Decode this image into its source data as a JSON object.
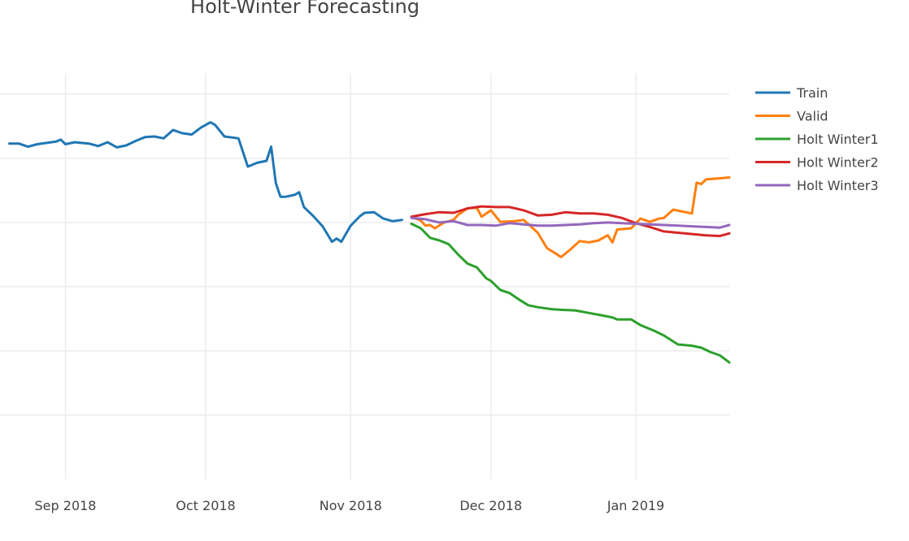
{
  "chart_data": {
    "type": "line",
    "title": "Holt-Winter Forecasting",
    "xlabel": "",
    "ylabel": "",
    "grid": true,
    "legend_position": "right",
    "x_ticks": [
      "Sep 2018",
      "Oct 2018",
      "Nov 2018",
      "Dec 2018",
      "Jan 2019"
    ],
    "series": [
      {
        "name": "Train",
        "color": "#1f77b4",
        "points": [
          [
            "2018-08-20",
            5.23
          ],
          [
            "2018-08-22",
            5.23
          ],
          [
            "2018-08-24",
            5.18
          ],
          [
            "2018-08-26",
            5.22
          ],
          [
            "2018-08-28",
            5.24
          ],
          [
            "2018-08-30",
            5.26
          ],
          [
            "2018-08-31",
            5.29
          ],
          [
            "2018-09-01",
            5.22
          ],
          [
            "2018-09-03",
            5.25
          ],
          [
            "2018-09-06",
            5.23
          ],
          [
            "2018-09-08",
            5.19
          ],
          [
            "2018-09-10",
            5.25
          ],
          [
            "2018-09-12",
            5.17
          ],
          [
            "2018-09-14",
            5.2
          ],
          [
            "2018-09-16",
            5.27
          ],
          [
            "2018-09-18",
            5.33
          ],
          [
            "2018-09-20",
            5.34
          ],
          [
            "2018-09-22",
            5.31
          ],
          [
            "2018-09-24",
            5.44
          ],
          [
            "2018-09-26",
            5.39
          ],
          [
            "2018-09-28",
            5.37
          ],
          [
            "2018-09-30",
            5.48
          ],
          [
            "2018-10-02",
            5.56
          ],
          [
            "2018-10-03",
            5.52
          ],
          [
            "2018-10-05",
            5.34
          ],
          [
            "2018-10-08",
            5.31
          ],
          [
            "2018-10-10",
            4.87
          ],
          [
            "2018-10-12",
            4.93
          ],
          [
            "2018-10-14",
            4.96
          ],
          [
            "2018-10-15",
            5.18
          ],
          [
            "2018-10-16",
            4.61
          ],
          [
            "2018-10-17",
            4.4
          ],
          [
            "2018-10-18",
            4.4
          ],
          [
            "2018-10-20",
            4.43
          ],
          [
            "2018-10-21",
            4.47
          ],
          [
            "2018-10-22",
            4.24
          ],
          [
            "2018-10-24",
            4.1
          ],
          [
            "2018-10-26",
            3.94
          ],
          [
            "2018-10-28",
            3.7
          ],
          [
            "2018-10-29",
            3.75
          ],
          [
            "2018-10-30",
            3.7
          ],
          [
            "2018-11-01",
            3.95
          ],
          [
            "2018-11-03",
            4.1
          ],
          [
            "2018-11-04",
            4.15
          ],
          [
            "2018-11-06",
            4.16
          ],
          [
            "2018-11-08",
            4.06
          ],
          [
            "2018-11-10",
            4.02
          ],
          [
            "2018-11-12",
            4.04
          ]
        ]
      },
      {
        "name": "Valid",
        "color": "#ff7f0e",
        "points": [
          [
            "2018-11-14",
            4.09
          ],
          [
            "2018-11-16",
            4.03
          ],
          [
            "2018-11-17",
            3.95
          ],
          [
            "2018-11-18",
            3.96
          ],
          [
            "2018-11-19",
            3.91
          ],
          [
            "2018-11-21",
            4.0
          ],
          [
            "2018-11-23",
            4.04
          ],
          [
            "2018-11-24",
            4.12
          ],
          [
            "2018-11-26",
            4.22
          ],
          [
            "2018-11-28",
            4.23
          ],
          [
            "2018-11-29",
            4.09
          ],
          [
            "2018-12-01",
            4.19
          ],
          [
            "2018-12-03",
            4.01
          ],
          [
            "2018-12-06",
            4.02
          ],
          [
            "2018-12-08",
            4.04
          ],
          [
            "2018-12-10",
            3.91
          ],
          [
            "2018-12-11",
            3.84
          ],
          [
            "2018-12-13",
            3.6
          ],
          [
            "2018-12-15",
            3.51
          ],
          [
            "2018-12-16",
            3.46
          ],
          [
            "2018-12-18",
            3.58
          ],
          [
            "2018-12-20",
            3.71
          ],
          [
            "2018-12-22",
            3.69
          ],
          [
            "2018-12-24",
            3.72
          ],
          [
            "2018-12-26",
            3.8
          ],
          [
            "2018-12-27",
            3.69
          ],
          [
            "2018-12-28",
            3.89
          ],
          [
            "2018-12-31",
            3.91
          ],
          [
            "2019-01-02",
            4.06
          ],
          [
            "2019-01-04",
            4.01
          ],
          [
            "2019-01-06",
            4.06
          ],
          [
            "2019-01-07",
            4.07
          ],
          [
            "2019-01-09",
            4.2
          ],
          [
            "2019-01-13",
            4.14
          ],
          [
            "2019-01-14",
            4.62
          ],
          [
            "2019-01-15",
            4.6
          ],
          [
            "2019-01-16",
            4.67
          ],
          [
            "2019-01-21",
            4.7
          ]
        ]
      },
      {
        "name": "Holt Winter1",
        "color": "#2ca02c",
        "points": [
          [
            "2018-11-14",
            3.98
          ],
          [
            "2018-11-16",
            3.91
          ],
          [
            "2018-11-18",
            3.76
          ],
          [
            "2018-11-20",
            3.72
          ],
          [
            "2018-11-22",
            3.66
          ],
          [
            "2018-11-24",
            3.5
          ],
          [
            "2018-11-26",
            3.36
          ],
          [
            "2018-11-28",
            3.3
          ],
          [
            "2018-11-30",
            3.13
          ],
          [
            "2018-12-01",
            3.09
          ],
          [
            "2018-12-03",
            2.95
          ],
          [
            "2018-12-05",
            2.9
          ],
          [
            "2018-12-07",
            2.8
          ],
          [
            "2018-12-09",
            2.71
          ],
          [
            "2018-12-11",
            2.68
          ],
          [
            "2018-12-14",
            2.65
          ],
          [
            "2018-12-16",
            2.64
          ],
          [
            "2018-12-19",
            2.63
          ],
          [
            "2018-12-22",
            2.59
          ],
          [
            "2018-12-25",
            2.55
          ],
          [
            "2018-12-27",
            2.52
          ],
          [
            "2018-12-28",
            2.49
          ],
          [
            "2018-12-31",
            2.49
          ],
          [
            "2019-01-02",
            2.4
          ],
          [
            "2019-01-05",
            2.31
          ],
          [
            "2019-01-07",
            2.24
          ],
          [
            "2019-01-10",
            2.1
          ],
          [
            "2019-01-13",
            2.08
          ],
          [
            "2019-01-15",
            2.05
          ],
          [
            "2019-01-17",
            1.98
          ],
          [
            "2019-01-19",
            1.93
          ],
          [
            "2019-01-21",
            1.82
          ]
        ]
      },
      {
        "name": "Holt Winter2",
        "color": "#d62728",
        "points": [
          [
            "2018-11-14",
            4.09
          ],
          [
            "2018-11-17",
            4.13
          ],
          [
            "2018-11-20",
            4.16
          ],
          [
            "2018-11-23",
            4.15
          ],
          [
            "2018-11-26",
            4.22
          ],
          [
            "2018-11-29",
            4.25
          ],
          [
            "2018-12-02",
            4.24
          ],
          [
            "2018-12-05",
            4.24
          ],
          [
            "2018-12-08",
            4.19
          ],
          [
            "2018-12-11",
            4.11
          ],
          [
            "2018-12-14",
            4.12
          ],
          [
            "2018-12-17",
            4.16
          ],
          [
            "2018-12-20",
            4.14
          ],
          [
            "2018-12-23",
            4.14
          ],
          [
            "2018-12-26",
            4.12
          ],
          [
            "2018-12-29",
            4.07
          ],
          [
            "2019-01-01",
            3.99
          ],
          [
            "2019-01-04",
            3.93
          ],
          [
            "2019-01-07",
            3.86
          ],
          [
            "2019-01-10",
            3.84
          ],
          [
            "2019-01-13",
            3.82
          ],
          [
            "2019-01-16",
            3.8
          ],
          [
            "2019-01-19",
            3.79
          ],
          [
            "2019-01-21",
            3.83
          ]
        ]
      },
      {
        "name": "Holt Winter3",
        "color": "#9467bd",
        "points": [
          [
            "2018-11-14",
            4.07
          ],
          [
            "2018-11-17",
            4.05
          ],
          [
            "2018-11-20",
            4.0
          ],
          [
            "2018-11-23",
            4.02
          ],
          [
            "2018-11-26",
            3.96
          ],
          [
            "2018-11-29",
            3.96
          ],
          [
            "2018-12-02",
            3.95
          ],
          [
            "2018-12-05",
            3.99
          ],
          [
            "2018-12-08",
            3.97
          ],
          [
            "2018-12-11",
            3.95
          ],
          [
            "2018-12-14",
            3.95
          ],
          [
            "2018-12-17",
            3.96
          ],
          [
            "2018-12-20",
            3.97
          ],
          [
            "2018-12-23",
            3.99
          ],
          [
            "2018-12-26",
            4.0
          ],
          [
            "2018-12-29",
            3.99
          ],
          [
            "2019-01-01",
            3.98
          ],
          [
            "2019-01-04",
            3.97
          ],
          [
            "2019-01-07",
            3.96
          ],
          [
            "2019-01-10",
            3.95
          ],
          [
            "2019-01-13",
            3.94
          ],
          [
            "2019-01-16",
            3.93
          ],
          [
            "2019-01-19",
            3.92
          ],
          [
            "2019-01-21",
            3.96
          ]
        ]
      }
    ],
    "x_range": [
      "2018-08-18",
      "2019-01-21"
    ],
    "y_range": [
      0,
      6.2
    ],
    "y_gridlines": [
      1,
      2,
      3,
      4,
      5,
      6
    ]
  }
}
